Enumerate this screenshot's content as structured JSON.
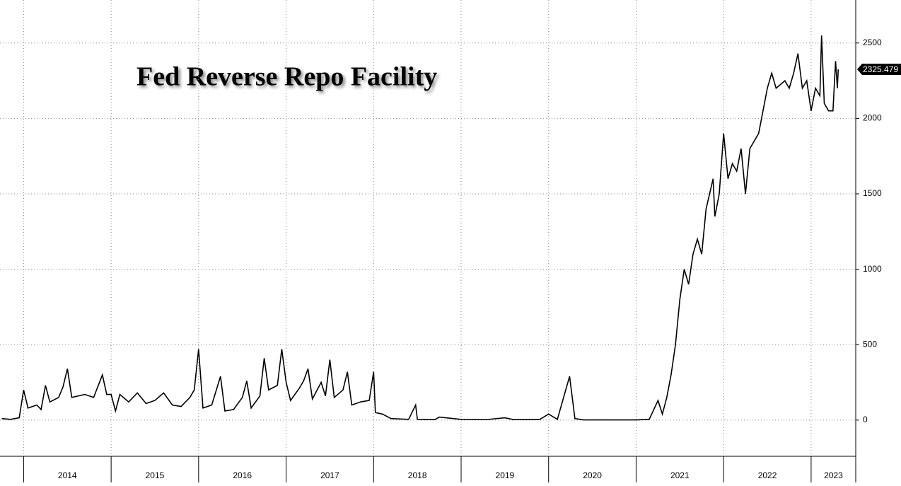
{
  "chart_data": {
    "type": "line",
    "title": "Fed Reverse Repo Facility",
    "x": [
      2013.75,
      2013.85,
      2013.95,
      2014.0,
      2014.05,
      2014.15,
      2014.2,
      2014.25,
      2014.3,
      2014.4,
      2014.45,
      2014.5,
      2014.55,
      2014.7,
      2014.8,
      2014.9,
      2014.95,
      2015.0,
      2015.05,
      2015.1,
      2015.2,
      2015.3,
      2015.4,
      2015.5,
      2015.6,
      2015.7,
      2015.8,
      2015.9,
      2015.95,
      2016.0,
      2016.05,
      2016.15,
      2016.25,
      2016.3,
      2016.4,
      2016.5,
      2016.55,
      2016.6,
      2016.7,
      2016.75,
      2016.8,
      2016.9,
      2016.95,
      2017.0,
      2017.05,
      2017.15,
      2017.2,
      2017.25,
      2017.3,
      2017.4,
      2017.45,
      2017.5,
      2017.55,
      2017.65,
      2017.7,
      2017.75,
      2017.85,
      2017.95,
      2018.0,
      2018.02,
      2018.1,
      2018.2,
      2018.4,
      2018.48,
      2018.5,
      2018.7,
      2018.75,
      2019.0,
      2019.3,
      2019.5,
      2019.6,
      2019.9,
      2020.0,
      2020.1,
      2020.24,
      2020.3,
      2020.4,
      2021.0,
      2021.15,
      2021.25,
      2021.3,
      2021.35,
      2021.4,
      2021.45,
      2021.5,
      2021.55,
      2021.6,
      2021.65,
      2021.7,
      2021.75,
      2021.8,
      2021.88,
      2021.9,
      2021.95,
      2022.0,
      2022.05,
      2022.1,
      2022.15,
      2022.2,
      2022.25,
      2022.3,
      2022.4,
      2022.45,
      2022.5,
      2022.55,
      2022.6,
      2022.7,
      2022.75,
      2022.8,
      2022.85,
      2022.9,
      2022.95,
      2023.0,
      2023.05,
      2023.1,
      2023.12,
      2023.15,
      2023.2,
      2023.25,
      2023.28,
      2023.3,
      2023.31
    ],
    "values": [
      10,
      5,
      15,
      200,
      80,
      100,
      70,
      230,
      120,
      150,
      220,
      340,
      150,
      170,
      150,
      300,
      170,
      170,
      60,
      170,
      120,
      180,
      110,
      130,
      180,
      100,
      90,
      150,
      200,
      470,
      80,
      100,
      290,
      60,
      70,
      150,
      260,
      80,
      160,
      410,
      200,
      230,
      470,
      250,
      130,
      210,
      260,
      340,
      140,
      250,
      160,
      400,
      150,
      200,
      320,
      100,
      120,
      130,
      320,
      50,
      40,
      10,
      5,
      100,
      5,
      3,
      20,
      5,
      4,
      15,
      3,
      5,
      40,
      5,
      290,
      10,
      1,
      1,
      5,
      130,
      40,
      150,
      300,
      500,
      800,
      1000,
      900,
      1100,
      1200,
      1100,
      1400,
      1600,
      1350,
      1500,
      1900,
      1600,
      1700,
      1650,
      1800,
      1500,
      1800,
      1900,
      2050,
      2200,
      2300,
      2200,
      2250,
      2200,
      2300,
      2430,
      2200,
      2250,
      2050,
      2200,
      2150,
      2550,
      2100,
      2050,
      2050,
      2380,
      2200,
      2325.479
    ],
    "color": "#000000",
    "xlim": [
      2013.73,
      2023.51
    ],
    "xticks": [
      2014,
      2015,
      2016,
      2017,
      2018,
      2019,
      2020,
      2021,
      2022,
      2023
    ],
    "ylim": [
      -240,
      2785
    ],
    "yticks": [
      0,
      500,
      1000,
      1500,
      2000,
      2500
    ],
    "grid": true
  }
}
